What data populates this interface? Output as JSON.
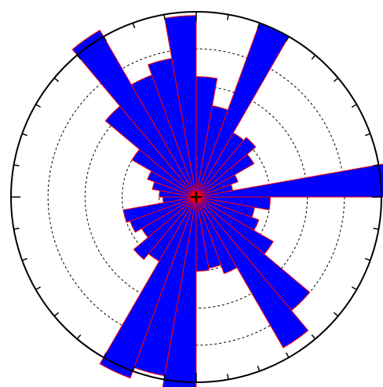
{
  "chart_data": {
    "type": "rose",
    "bin_width_deg": 10,
    "angle_origin": "north",
    "angle_direction": "clockwise",
    "radial_max": 5,
    "radial_rings": [
      1,
      2,
      3,
      4
    ],
    "grid": true,
    "tick_marks_every_deg": 10,
    "center_marker": "+",
    "bin_start_deg": [
      0,
      10,
      20,
      30,
      40,
      50,
      60,
      70,
      80,
      90,
      100,
      110,
      120,
      130,
      140,
      150,
      160,
      170,
      180,
      190,
      200,
      210,
      220,
      230,
      240,
      250,
      260,
      270,
      280,
      290,
      300,
      310,
      320,
      330,
      340,
      350
    ],
    "values": [
      3.25,
      2.5,
      5.0,
      2.0,
      2.1,
      1.8,
      1.2,
      1.0,
      5.3,
      2.0,
      1.6,
      1.8,
      2.4,
      4.0,
      4.7,
      2.2,
      1.95,
      2.0,
      5.3,
      4.9,
      5.2,
      2.0,
      2.2,
      1.7,
      1.9,
      2.0,
      0.9,
      1.0,
      1.2,
      1.4,
      2.0,
      3.2,
      5.2,
      3.5,
      3.8,
      4.9
    ],
    "colors": {
      "fill": "#0000ff",
      "edge": "#ff0000",
      "axis": "#000000",
      "grid": "#000000",
      "center_marker": "#000000"
    }
  }
}
